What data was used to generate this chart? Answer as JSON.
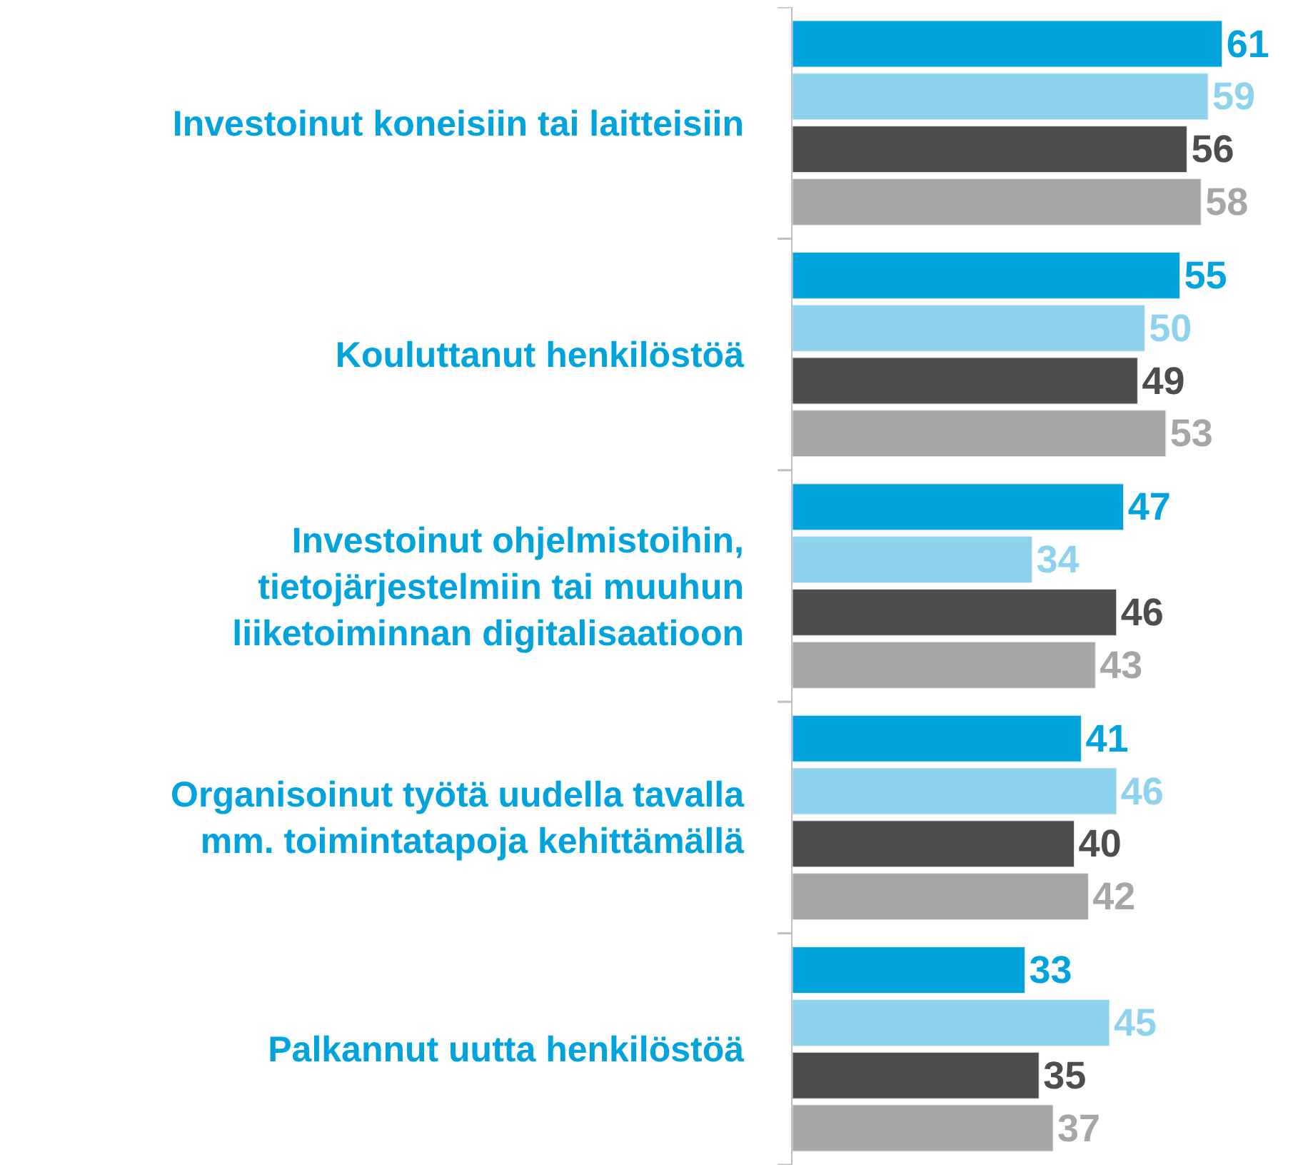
{
  "chart_data": {
    "type": "bar",
    "orientation": "horizontal",
    "data_labels": true,
    "legend": false,
    "categories": [
      "Investoinut koneisiin tai laitteisiin",
      "Kouluttanut henkilöstöä",
      "Investoinut ohjelmistoihin,\ntietojärjestelmiin tai muuhun\nliiketoiminnan digitalisaatioon",
      "Organisoinut työtä uudella tavalla\nmm. toimintatapoja kehittämällä",
      "Palkannut uutta henkilöstöä"
    ],
    "series": [
      {
        "color": "#00a3dc",
        "values": [
          61,
          55,
          47,
          41,
          33
        ]
      },
      {
        "color": "#8dd3ee",
        "values": [
          59,
          50,
          34,
          46,
          45
        ]
      },
      {
        "color": "#4d4d4d",
        "values": [
          56,
          49,
          46,
          40,
          35
        ]
      },
      {
        "color": "#a6a6a6",
        "values": [
          58,
          53,
          43,
          42,
          37
        ]
      }
    ]
  }
}
